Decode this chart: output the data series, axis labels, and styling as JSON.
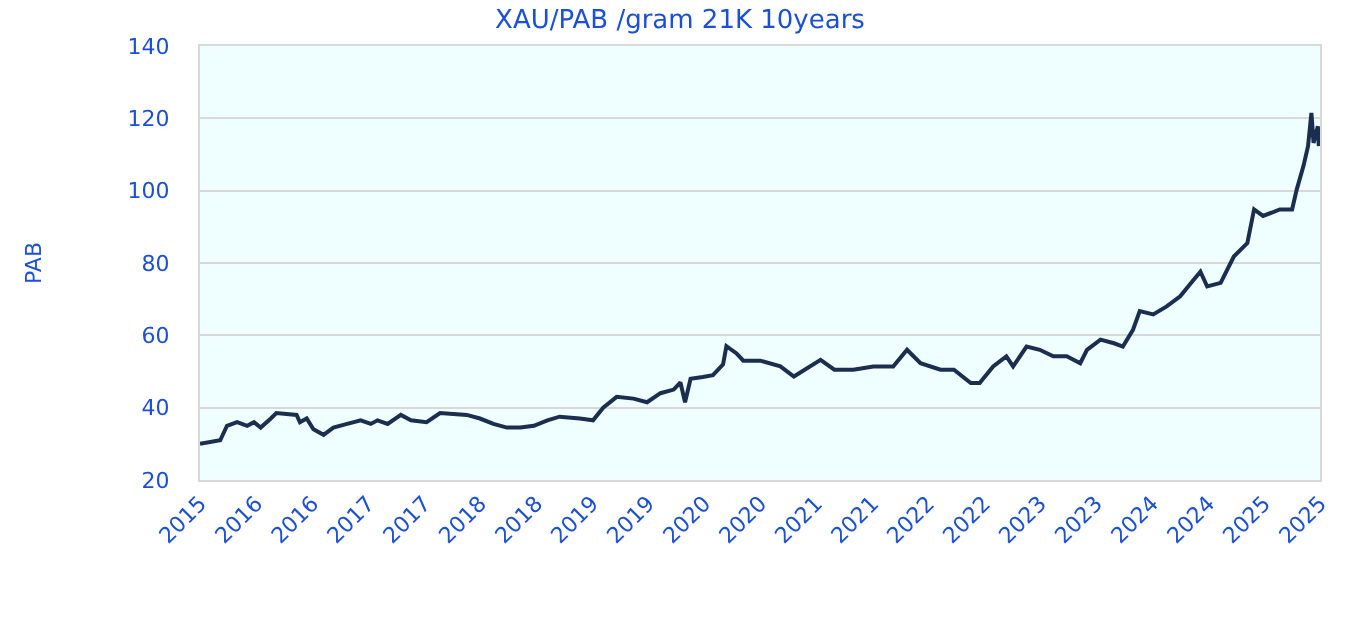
{
  "chart_data": {
    "type": "line",
    "title": "XAU/PAB /gram 21K 10years",
    "ylabel": "PAB",
    "x": [
      "2015-10-01",
      "2015-12-06",
      "2015-12-28",
      "2016-01-30",
      "2016-03-03",
      "2016-03-25",
      "2016-04-16",
      "2016-05-19",
      "2016-06-06",
      "2016-08-11",
      "2016-08-22",
      "2016-09-13",
      "2016-10-05",
      "2016-11-07",
      "2016-12-09",
      "2017-01-23",
      "2017-03-08",
      "2017-04-10",
      "2017-05-02",
      "2017-06-04",
      "2017-07-17",
      "2017-08-19",
      "2017-10-09",
      "2017-11-22",
      "2018-02-17",
      "2018-04-01",
      "2018-05-15",
      "2018-06-28",
      "2018-08-11",
      "2018-09-24",
      "2018-11-07",
      "2018-12-17",
      "2019-02-21",
      "2019-04-05",
      "2019-05-08",
      "2019-06-21",
      "2019-08-15",
      "2019-09-28",
      "2019-11-11",
      "2019-12-24",
      "2020-01-15",
      "2020-01-30",
      "2020-02-17",
      "2020-03-28",
      "2020-04-30",
      "2020-06-02",
      "2020-06-13",
      "2020-07-16",
      "2020-08-07",
      "2020-10-01",
      "2020-12-06",
      "2021-01-19",
      "2021-04-16",
      "2021-05-31",
      "2021-08-01",
      "2021-10-05",
      "2021-12-09",
      "2022-01-23",
      "2022-03-08",
      "2022-05-12",
      "2022-06-25",
      "2022-08-19",
      "2022-09-17",
      "2022-10-31",
      "2022-12-13",
      "2023-01-04",
      "2023-02-17",
      "2023-04-01",
      "2023-05-15",
      "2023-06-28",
      "2023-08-11",
      "2023-09-02",
      "2023-10-16",
      "2023-11-29",
      "2023-12-28",
      "2024-01-30",
      "2024-02-21",
      "2024-04-05",
      "2024-05-19",
      "2024-07-02",
      "2024-08-15",
      "2024-09-06",
      "2024-09-28",
      "2024-11-11",
      "2024-12-24",
      "2025-02-06",
      "2025-02-28",
      "2025-03-29",
      "2025-05-23",
      "2025-07-02",
      "2025-07-17",
      "2025-08-08",
      "2025-08-23",
      "2025-09-03",
      "2025-09-10",
      "2025-09-24",
      "2025-09-27"
    ],
    "series": [
      {
        "color": "#1b2e50",
        "values": [
          30,
          31,
          35,
          36,
          35,
          36,
          34.5,
          37,
          38.5,
          38,
          36,
          37,
          34,
          32.5,
          34.5,
          35.5,
          36.5,
          35.5,
          36.5,
          35.5,
          38,
          36.5,
          36,
          38.5,
          38,
          37,
          35.5,
          34.5,
          34.5,
          35,
          36.5,
          37.5,
          37,
          36.5,
          40,
          43,
          42.5,
          41.5,
          44,
          45,
          47,
          41.5,
          48,
          48.5,
          49,
          52,
          57,
          55,
          53,
          53,
          51.4,
          48.6,
          53.2,
          50.5,
          50.5,
          51.4,
          51.4,
          56,
          52.3,
          50.5,
          50.5,
          46.8,
          46.8,
          51.4,
          54.2,
          51.4,
          56.9,
          56,
          54.2,
          54.2,
          52.3,
          56,
          58.8,
          57.8,
          56.9,
          61.5,
          66.7,
          65.8,
          68,
          70.8,
          75.4,
          77.6,
          73.5,
          74.5,
          81.8,
          85.5,
          94.8,
          93,
          94.8,
          94.8,
          100.3,
          106.8,
          112.3,
          121.5,
          113.2,
          117.8,
          112.3
        ]
      }
    ],
    "xlim": [
      "2015-10-01",
      "2025-10-01"
    ],
    "xticks": [
      {
        "value": "2015-10-01",
        "label": "2015"
      },
      {
        "value": "2016-04-01",
        "label": "2016"
      },
      {
        "value": "2016-10-01",
        "label": "2016"
      },
      {
        "value": "2017-04-01",
        "label": "2017"
      },
      {
        "value": "2017-10-01",
        "label": "2017"
      },
      {
        "value": "2018-04-01",
        "label": "2018"
      },
      {
        "value": "2018-10-01",
        "label": "2018"
      },
      {
        "value": "2019-04-01",
        "label": "2019"
      },
      {
        "value": "2019-10-01",
        "label": "2019"
      },
      {
        "value": "2020-04-01",
        "label": "2020"
      },
      {
        "value": "2020-10-01",
        "label": "2020"
      },
      {
        "value": "2021-04-01",
        "label": "2021"
      },
      {
        "value": "2021-10-01",
        "label": "2021"
      },
      {
        "value": "2022-04-01",
        "label": "2022"
      },
      {
        "value": "2022-10-01",
        "label": "2022"
      },
      {
        "value": "2023-04-01",
        "label": "2023"
      },
      {
        "value": "2023-10-01",
        "label": "2023"
      },
      {
        "value": "2024-04-01",
        "label": "2024"
      },
      {
        "value": "2024-10-01",
        "label": "2024"
      },
      {
        "value": "2025-04-01",
        "label": "2025"
      },
      {
        "value": "2025-10-01",
        "label": "2025"
      }
    ],
    "ylim": [
      20,
      140
    ],
    "yticks": [
      20,
      40,
      60,
      80,
      100,
      120,
      140
    ],
    "grid": "y",
    "marker": "none",
    "line_style": "solid"
  }
}
